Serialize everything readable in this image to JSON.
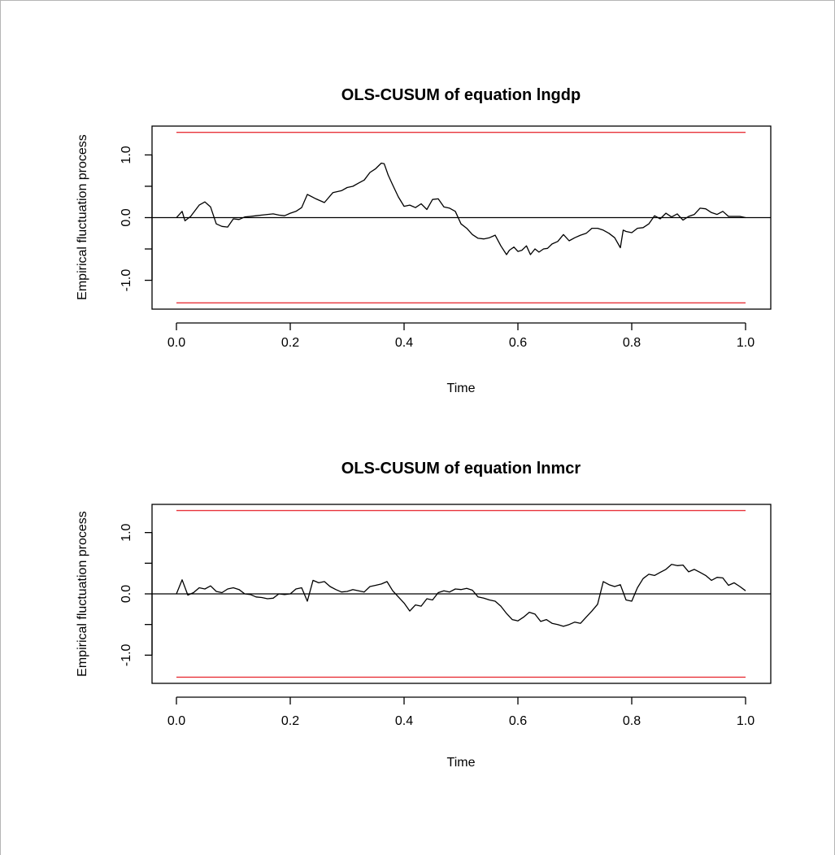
{
  "chart_data": [
    {
      "type": "line",
      "title": "OLS-CUSUM of equation lngdp",
      "xlabel": "Time",
      "ylabel": "Empirical fluctuation process",
      "xlim": [
        0,
        1
      ],
      "ylim": [
        -1.46,
        1.46
      ],
      "xticks": [
        "0.0",
        "0.2",
        "0.4",
        "0.6",
        "0.8",
        "1.0"
      ],
      "yticks": [
        "-1.0",
        "0.0",
        "1.0"
      ],
      "ytick_values": [
        -1.0,
        0.0,
        1.0
      ],
      "xtick_values": [
        0,
        0.2,
        0.4,
        0.6,
        0.8,
        1.0
      ],
      "boundaries": {
        "upper": 1.36,
        "lower": -1.36,
        "color": "#e8333a"
      },
      "reference_line": 0,
      "series": [
        {
          "x": [
            0,
            0.01,
            0.015,
            0.025,
            0.04,
            0.05,
            0.06,
            0.07,
            0.08,
            0.09,
            0.1,
            0.11,
            0.12,
            0.13,
            0.14,
            0.15,
            0.16,
            0.17,
            0.18,
            0.19,
            0.2,
            0.21,
            0.22,
            0.23,
            0.245,
            0.26,
            0.275,
            0.29,
            0.3,
            0.31,
            0.32,
            0.33,
            0.34,
            0.35,
            0.36,
            0.365,
            0.372,
            0.38,
            0.39,
            0.4,
            0.41,
            0.42,
            0.43,
            0.44,
            0.45,
            0.46,
            0.47,
            0.48,
            0.49,
            0.5,
            0.51,
            0.52,
            0.53,
            0.54,
            0.55,
            0.56,
            0.57,
            0.58,
            0.585,
            0.593,
            0.6,
            0.607,
            0.615,
            0.622,
            0.63,
            0.637,
            0.645,
            0.652,
            0.66,
            0.67,
            0.68,
            0.69,
            0.7,
            0.71,
            0.72,
            0.73,
            0.74,
            0.75,
            0.76,
            0.77,
            0.78,
            0.785,
            0.79,
            0.8,
            0.81,
            0.82,
            0.83,
            0.84,
            0.85,
            0.86,
            0.87,
            0.88,
            0.89,
            0.9,
            0.91,
            0.92,
            0.93,
            0.94,
            0.95,
            0.96,
            0.97,
            0.98,
            0.99,
            1.0
          ],
          "values": [
            0,
            0.1,
            -0.05,
            0.02,
            0.2,
            0.25,
            0.17,
            -0.1,
            -0.14,
            -0.15,
            -0.02,
            -0.03,
            0.01,
            0.02,
            0.03,
            0.04,
            0.05,
            0.06,
            0.04,
            0.03,
            0.07,
            0.1,
            0.16,
            0.37,
            0.3,
            0.24,
            0.4,
            0.43,
            0.48,
            0.5,
            0.55,
            0.6,
            0.72,
            0.78,
            0.87,
            0.86,
            0.68,
            0.52,
            0.33,
            0.18,
            0.2,
            0.16,
            0.22,
            0.13,
            0.29,
            0.3,
            0.17,
            0.15,
            0.1,
            -0.1,
            -0.17,
            -0.27,
            -0.33,
            -0.34,
            -0.32,
            -0.28,
            -0.45,
            -0.59,
            -0.52,
            -0.47,
            -0.54,
            -0.52,
            -0.45,
            -0.59,
            -0.5,
            -0.55,
            -0.5,
            -0.49,
            -0.42,
            -0.38,
            -0.27,
            -0.37,
            -0.32,
            -0.28,
            -0.25,
            -0.17,
            -0.17,
            -0.2,
            -0.25,
            -0.32,
            -0.48,
            -0.2,
            -0.22,
            -0.24,
            -0.17,
            -0.16,
            -0.1,
            0.03,
            -0.02,
            0.07,
            0.01,
            0.06,
            -0.04,
            0.02,
            0.05,
            0.15,
            0.14,
            0.08,
            0.05,
            0.1,
            0.02,
            0.02,
            0.02,
            0
          ]
        }
      ]
    },
    {
      "type": "line",
      "title": "OLS-CUSUM of equation lnmcr",
      "xlabel": "Time",
      "ylabel": "Empirical fluctuation process",
      "xlim": [
        0,
        1
      ],
      "ylim": [
        -1.46,
        1.46
      ],
      "xticks": [
        "0.0",
        "0.2",
        "0.4",
        "0.6",
        "0.8",
        "1.0"
      ],
      "yticks": [
        "-1.0",
        "0.0",
        "1.0"
      ],
      "ytick_values": [
        -1.0,
        0.0,
        1.0
      ],
      "xtick_values": [
        0,
        0.2,
        0.4,
        0.6,
        0.8,
        1.0
      ],
      "boundaries": {
        "upper": 1.36,
        "lower": -1.36,
        "color": "#e8333a"
      },
      "reference_line": 0,
      "series": [
        {
          "x": [
            0,
            0.01,
            0.02,
            0.03,
            0.04,
            0.05,
            0.06,
            0.07,
            0.08,
            0.09,
            0.1,
            0.11,
            0.12,
            0.13,
            0.14,
            0.15,
            0.16,
            0.17,
            0.18,
            0.19,
            0.2,
            0.21,
            0.22,
            0.23,
            0.24,
            0.25,
            0.26,
            0.27,
            0.28,
            0.29,
            0.3,
            0.31,
            0.32,
            0.33,
            0.34,
            0.35,
            0.36,
            0.37,
            0.38,
            0.39,
            0.4,
            0.41,
            0.42,
            0.43,
            0.44,
            0.45,
            0.46,
            0.47,
            0.48,
            0.49,
            0.5,
            0.51,
            0.52,
            0.53,
            0.54,
            0.55,
            0.56,
            0.57,
            0.58,
            0.59,
            0.6,
            0.61,
            0.62,
            0.63,
            0.64,
            0.65,
            0.66,
            0.67,
            0.68,
            0.69,
            0.7,
            0.71,
            0.72,
            0.73,
            0.74,
            0.75,
            0.76,
            0.77,
            0.78,
            0.79,
            0.8,
            0.81,
            0.82,
            0.83,
            0.84,
            0.85,
            0.86,
            0.87,
            0.88,
            0.89,
            0.9,
            0.91,
            0.92,
            0.93,
            0.94,
            0.95,
            0.96,
            0.97,
            0.98,
            0.99,
            1.0
          ],
          "values": [
            0,
            0.23,
            -0.02,
            0.02,
            0.1,
            0.08,
            0.13,
            0.04,
            0.02,
            0.08,
            0.1,
            0.07,
            0.0,
            -0.01,
            -0.05,
            -0.06,
            -0.08,
            -0.07,
            0.0,
            -0.01,
            0.0,
            0.08,
            0.1,
            -0.12,
            0.22,
            0.18,
            0.2,
            0.12,
            0.07,
            0.03,
            0.04,
            0.07,
            0.05,
            0.03,
            0.12,
            0.14,
            0.16,
            0.2,
            0.05,
            -0.05,
            -0.15,
            -0.28,
            -0.18,
            -0.2,
            -0.08,
            -0.1,
            0.02,
            0.05,
            0.03,
            0.08,
            0.07,
            0.09,
            0.06,
            -0.05,
            -0.07,
            -0.1,
            -0.12,
            -0.2,
            -0.32,
            -0.42,
            -0.44,
            -0.38,
            -0.3,
            -0.33,
            -0.45,
            -0.42,
            -0.48,
            -0.5,
            -0.53,
            -0.5,
            -0.46,
            -0.48,
            -0.38,
            -0.28,
            -0.17,
            0.2,
            0.15,
            0.12,
            0.15,
            -0.1,
            -0.12,
            0.1,
            0.25,
            0.32,
            0.3,
            0.35,
            0.4,
            0.48,
            0.46,
            0.47,
            0.36,
            0.4,
            0.35,
            0.3,
            0.22,
            0.27,
            0.26,
            0.14,
            0.18,
            0.12,
            0.05
          ]
        }
      ]
    }
  ]
}
